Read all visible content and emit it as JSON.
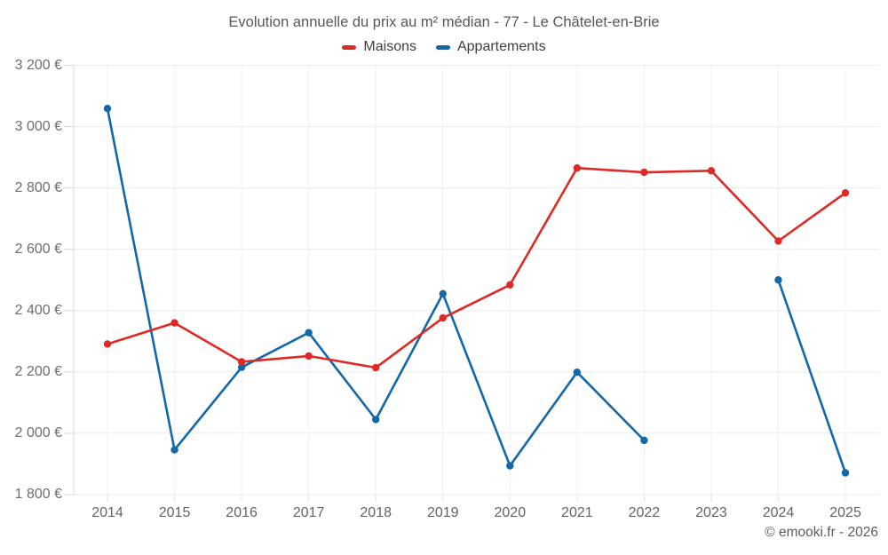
{
  "title": "Evolution annuelle du prix au m² médian - 77 - Le Châtelet-en-Brie",
  "footer": "© emooki.fr - 2026",
  "legend": {
    "items": [
      {
        "label": "Maisons",
        "color": "#de2a26"
      },
      {
        "label": "Appartements",
        "color": "#1268a8"
      }
    ]
  },
  "chart_data": {
    "type": "line",
    "title": "Evolution annuelle du prix au m² médian - 77 - Le Châtelet-en-Brie",
    "categories": [
      "2014",
      "2015",
      "2016",
      "2017",
      "2018",
      "2019",
      "2020",
      "2021",
      "2022",
      "2023",
      "2024",
      "2025"
    ],
    "series": [
      {
        "name": "Maisons",
        "color": "#de2a26",
        "values": [
          2291,
          2360,
          2233,
          2252,
          2214,
          2376,
          2484,
          2865,
          2851,
          2856,
          2627,
          2784
        ]
      },
      {
        "name": "Appartements",
        "color": "#1268a8",
        "values": [
          3059,
          1946,
          2215,
          2328,
          2045,
          2455,
          1894,
          2199,
          1977,
          null,
          2500,
          1871
        ]
      }
    ],
    "ylabel_unit": "€",
    "ylim": [
      1800,
      3200
    ],
    "yticks": [
      1800,
      2000,
      2200,
      2400,
      2600,
      2800,
      3000,
      3200
    ],
    "ytick_labels": [
      "1 800 €",
      "2 000 €",
      "2 200 €",
      "2 400 €",
      "2 600 €",
      "2 800 €",
      "3 000 €",
      "3 200 €"
    ],
    "grid": true,
    "legend_position": "top",
    "marker": "circle",
    "gap_note": "Appartements has no data point for 2023"
  }
}
